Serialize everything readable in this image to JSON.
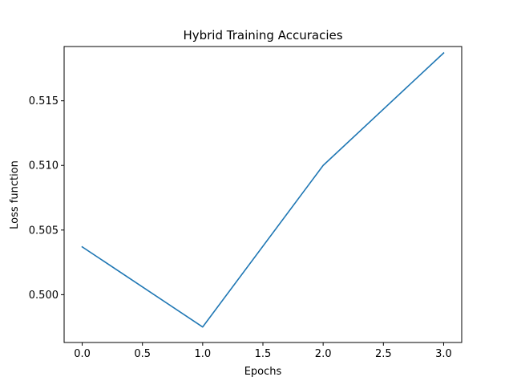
{
  "chart_data": {
    "type": "line",
    "title": "Hybrid Training Accuracies",
    "xlabel": "Epochs",
    "ylabel": "Loss function",
    "xlim": [
      -0.15,
      3.15
    ],
    "ylim": [
      0.4963,
      0.5192
    ],
    "x_ticks": [
      0.0,
      0.5,
      1.0,
      1.5,
      2.0,
      2.5,
      3.0
    ],
    "x_tick_labels": [
      "0.0",
      "0.5",
      "1.0",
      "1.5",
      "2.0",
      "2.5",
      "3.0"
    ],
    "y_ticks": [
      0.5,
      0.505,
      0.51,
      0.515
    ],
    "y_tick_labels": [
      "0.500",
      "0.505",
      "0.510",
      "0.515"
    ],
    "grid": false,
    "series": [
      {
        "color": "#1f77b4",
        "x": [
          0,
          1,
          2,
          3
        ],
        "values": [
          0.5037,
          0.4975,
          0.51,
          0.5187
        ]
      }
    ]
  }
}
